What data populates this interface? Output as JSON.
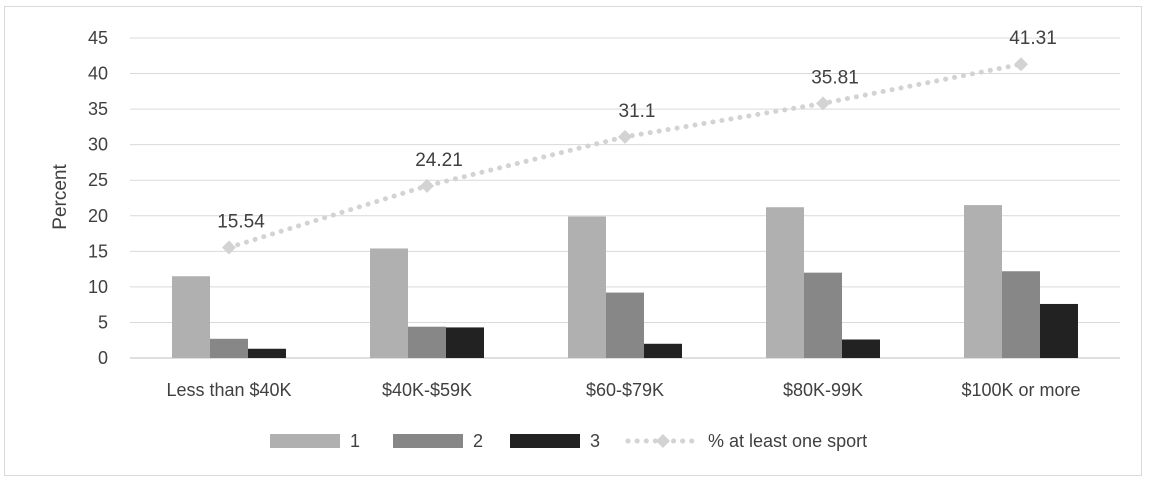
{
  "chart_data": {
    "type": "bar",
    "categories": [
      "Less than $40K",
      "$40K-$59K",
      "$60-$79K",
      "$80K-99K",
      "$100K or more"
    ],
    "series": [
      {
        "name": "1",
        "type": "bar",
        "values": [
          11.5,
          15.4,
          19.9,
          21.2,
          21.5
        ],
        "color": "#b0b0b0"
      },
      {
        "name": "2",
        "type": "bar",
        "values": [
          2.7,
          4.4,
          9.2,
          12.0,
          12.2
        ],
        "color": "#878787"
      },
      {
        "name": "3",
        "type": "bar",
        "values": [
          1.3,
          4.3,
          2.0,
          2.6,
          7.6
        ],
        "color": "#222222"
      },
      {
        "name": "% at least one sport",
        "type": "line",
        "values": [
          15.54,
          24.21,
          31.1,
          35.81,
          41.31
        ],
        "labels": [
          "15.54",
          "24.21",
          "31.1",
          "35.81",
          "41.31"
        ],
        "color": "#d3d3d3",
        "style": "dotted",
        "marker": "diamond"
      }
    ],
    "ylabel": "Percent",
    "xlabel": "",
    "ylim": [
      0,
      45
    ],
    "yticks": [
      0,
      5,
      10,
      15,
      20,
      25,
      30,
      35,
      40,
      45
    ],
    "grid": true,
    "legend": "bottom"
  }
}
